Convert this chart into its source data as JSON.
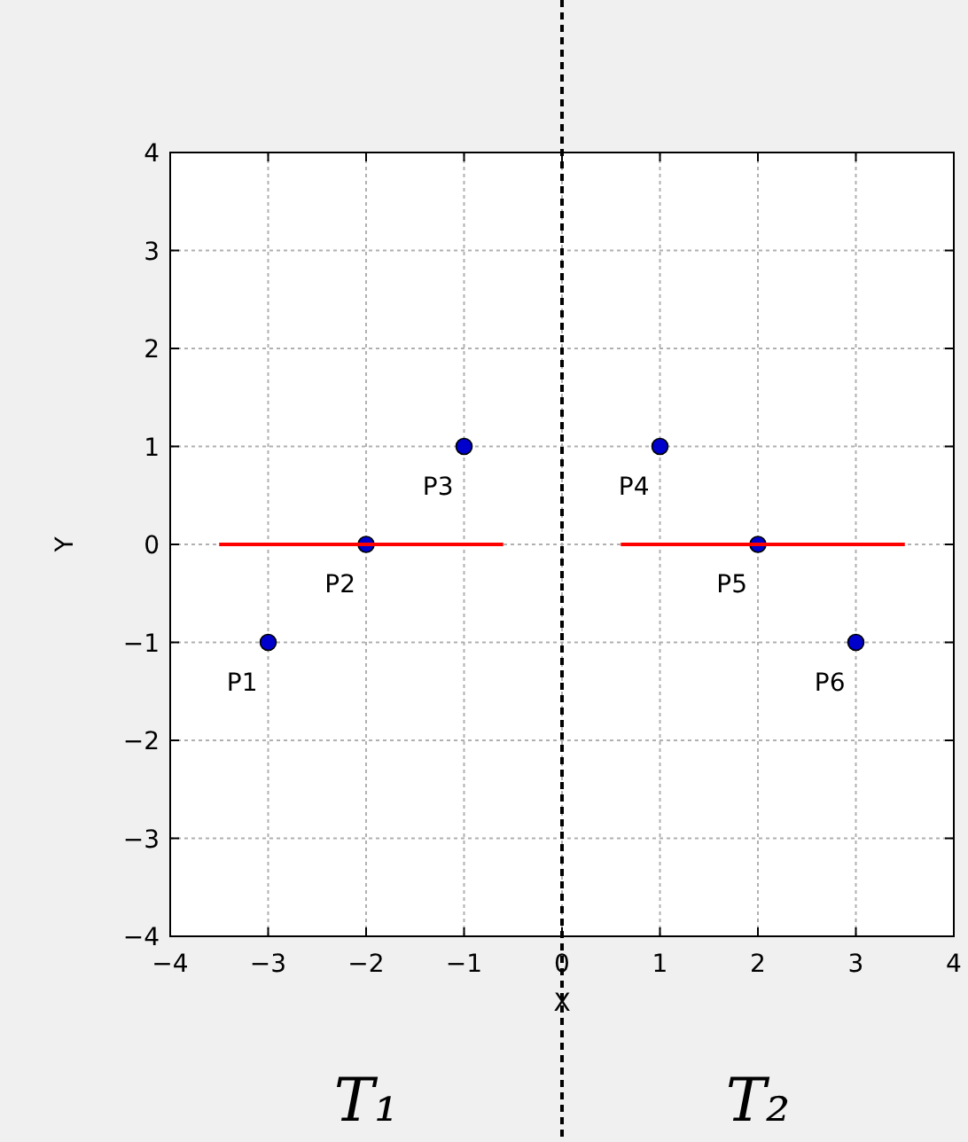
{
  "chart_data": {
    "type": "scatter",
    "xlabel": "X",
    "ylabel": "Y",
    "xlim": [
      -4,
      4
    ],
    "ylim": [
      -4,
      4
    ],
    "xticks": [
      {
        "value": -4,
        "label": "−4"
      },
      {
        "value": -3,
        "label": "−3"
      },
      {
        "value": -2,
        "label": "−2"
      },
      {
        "value": -1,
        "label": "−1"
      },
      0,
      1,
      2,
      3,
      4
    ],
    "yticks": [
      {
        "value": -4,
        "label": "−4"
      },
      {
        "value": -3,
        "label": "−3"
      },
      {
        "value": -2,
        "label": "−2"
      },
      {
        "value": -1,
        "label": "−1"
      },
      0,
      1,
      2,
      3,
      4
    ],
    "grid": true,
    "marker": "circle",
    "series": [
      {
        "color": "#0000cc",
        "x": [
          -3,
          -2,
          -1,
          1,
          2,
          3
        ],
        "values": [
          -1,
          0,
          1,
          1,
          0,
          -1
        ]
      },
      {
        "type": "line",
        "color": "#ff0000",
        "marker": "none",
        "x": [
          -3.5,
          -0.6
        ],
        "values": [
          0,
          0
        ]
      },
      {
        "type": "line",
        "color": "#ff0000",
        "marker": "none",
        "x": [
          0.6,
          3.5
        ],
        "values": [
          0,
          0
        ]
      }
    ],
    "ref_lines": [
      {
        "axis": "x",
        "value": 0,
        "color": "#000000",
        "line_style": "dashed"
      }
    ],
    "annotations": [
      {
        "text": "P1",
        "x": -3,
        "y": -1
      },
      {
        "text": "P2",
        "x": -2,
        "y": 0
      },
      {
        "text": "P3",
        "x": -1,
        "y": 1
      },
      {
        "text": "P4",
        "x": 1,
        "y": 1
      },
      {
        "text": "P5",
        "x": 2,
        "y": 0
      },
      {
        "text": "P6",
        "x": 3,
        "y": -1
      },
      "T₁",
      "T₂"
    ]
  }
}
